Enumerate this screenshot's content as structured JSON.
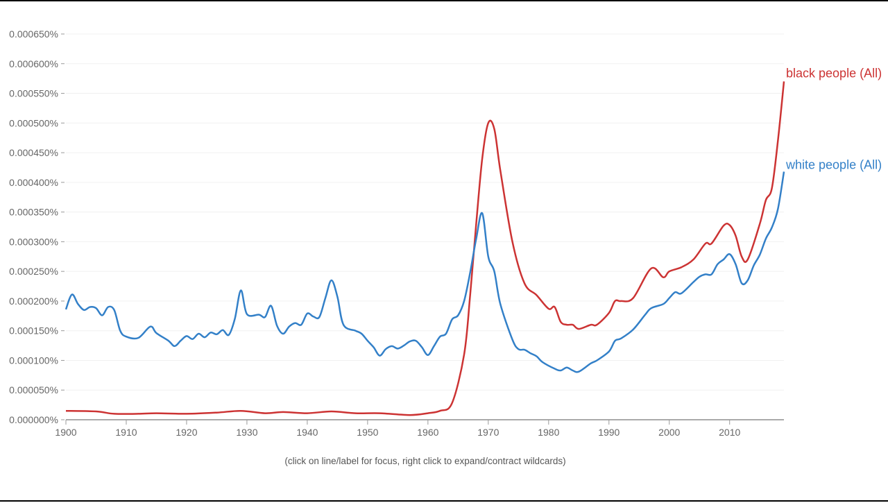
{
  "chart_data": {
    "type": "line",
    "xlim": [
      1900,
      2019
    ],
    "ylim": [
      0,
      0.00065
    ],
    "x_ticks": [
      1900,
      1910,
      1920,
      1930,
      1940,
      1950,
      1960,
      1970,
      1980,
      1990,
      2000,
      2010
    ],
    "y_ticks": [
      {
        "value": 0.0,
        "label": "0.000000%"
      },
      {
        "value": 5e-05,
        "label": "0.000050%"
      },
      {
        "value": 0.0001,
        "label": "0.000100%"
      },
      {
        "value": 0.00015,
        "label": "0.000150%"
      },
      {
        "value": 0.0002,
        "label": "0.000200%"
      },
      {
        "value": 0.00025,
        "label": "0.000250%"
      },
      {
        "value": 0.0003,
        "label": "0.000300%"
      },
      {
        "value": 0.00035,
        "label": "0.000350%"
      },
      {
        "value": 0.0004,
        "label": "0.000400%"
      },
      {
        "value": 0.00045,
        "label": "0.000450%"
      },
      {
        "value": 0.0005,
        "label": "0.000500%"
      },
      {
        "value": 0.00055,
        "label": "0.000550%"
      },
      {
        "value": 0.0006,
        "label": "0.000600%"
      },
      {
        "value": 0.00065,
        "label": "0.000650%"
      }
    ],
    "grid": true,
    "series": [
      {
        "name": "black people (All)",
        "color": "#cc3333",
        "points": [
          [
            1900,
            1.5e-05
          ],
          [
            1905,
            1.4e-05
          ],
          [
            1908,
            1e-05
          ],
          [
            1912,
            1e-05
          ],
          [
            1915,
            1.1e-05
          ],
          [
            1920,
            1e-05
          ],
          [
            1925,
            1.2e-05
          ],
          [
            1929,
            1.5e-05
          ],
          [
            1933,
            1.1e-05
          ],
          [
            1936,
            1.3e-05
          ],
          [
            1940,
            1.1e-05
          ],
          [
            1944,
            1.4e-05
          ],
          [
            1948,
            1.1e-05
          ],
          [
            1952,
            1.1e-05
          ],
          [
            1957,
            8e-06
          ],
          [
            1960,
            1.1e-05
          ],
          [
            1962,
            1.5e-05
          ],
          [
            1964,
            2.8e-05
          ],
          [
            1966,
            0.00011
          ],
          [
            1967,
            0.00021
          ],
          [
            1968,
            0.00033
          ],
          [
            1969,
            0.00044
          ],
          [
            1970,
            0.0005
          ],
          [
            1971,
            0.00049
          ],
          [
            1972,
            0.00042
          ],
          [
            1974,
            0.0003
          ],
          [
            1976,
            0.00023
          ],
          [
            1978,
            0.00021
          ],
          [
            1980,
            0.000187
          ],
          [
            1981,
            0.00019
          ],
          [
            1982,
            0.000165
          ],
          [
            1983,
            0.00016
          ],
          [
            1984,
            0.00016
          ],
          [
            1985,
            0.000153
          ],
          [
            1987,
            0.00016
          ],
          [
            1988,
            0.00016
          ],
          [
            1990,
            0.00018
          ],
          [
            1991,
            0.0002
          ],
          [
            1992,
            0.0002
          ],
          [
            1994,
            0.000205
          ],
          [
            1997,
            0.000255
          ],
          [
            1999,
            0.00024
          ],
          [
            2000,
            0.00025
          ],
          [
            2002,
            0.000257
          ],
          [
            2004,
            0.00027
          ],
          [
            2006,
            0.000297
          ],
          [
            2007,
            0.000297
          ],
          [
            2009,
            0.000327
          ],
          [
            2010,
            0.000328
          ],
          [
            2011,
            0.00031
          ],
          [
            2012,
            0.000275
          ],
          [
            2013,
            0.00027
          ],
          [
            2015,
            0.00033
          ],
          [
            2016,
            0.00037
          ],
          [
            2017,
            0.00039
          ],
          [
            2018,
            0.00047
          ],
          [
            2019,
            0.00057
          ]
        ]
      },
      {
        "name": "white people (All)",
        "color": "#3380c8",
        "points": [
          [
            1900,
            0.000186
          ],
          [
            1901,
            0.000211
          ],
          [
            1902,
            0.000195
          ],
          [
            1903,
            0.000185
          ],
          [
            1904,
            0.00019
          ],
          [
            1905,
            0.000188
          ],
          [
            1906,
            0.000176
          ],
          [
            1907,
            0.00019
          ],
          [
            1908,
            0.000185
          ],
          [
            1909,
            0.00015
          ],
          [
            1910,
            0.00014
          ],
          [
            1912,
            0.000138
          ],
          [
            1914,
            0.000157
          ],
          [
            1915,
            0.000146
          ],
          [
            1917,
            0.000133
          ],
          [
            1918,
            0.000124
          ],
          [
            1919,
            0.000133
          ],
          [
            1920,
            0.000141
          ],
          [
            1921,
            0.000136
          ],
          [
            1922,
            0.000145
          ],
          [
            1923,
            0.000139
          ],
          [
            1924,
            0.000147
          ],
          [
            1925,
            0.000144
          ],
          [
            1926,
            0.000151
          ],
          [
            1927,
            0.000143
          ],
          [
            1928,
            0.00017
          ],
          [
            1929,
            0.000218
          ],
          [
            1930,
            0.000178
          ],
          [
            1932,
            0.000177
          ],
          [
            1933,
            0.000173
          ],
          [
            1934,
            0.000192
          ],
          [
            1935,
            0.000158
          ],
          [
            1936,
            0.000145
          ],
          [
            1937,
            0.000157
          ],
          [
            1938,
            0.000163
          ],
          [
            1939,
            0.00016
          ],
          [
            1940,
            0.000179
          ],
          [
            1941,
            0.000174
          ],
          [
            1942,
            0.000173
          ],
          [
            1943,
            0.000205
          ],
          [
            1944,
            0.000235
          ],
          [
            1945,
            0.000207
          ],
          [
            1946,
            0.00016
          ],
          [
            1948,
            0.00015
          ],
          [
            1949,
            0.000145
          ],
          [
            1950,
            0.000133
          ],
          [
            1951,
            0.000122
          ],
          [
            1952,
            0.000108
          ],
          [
            1953,
            0.000119
          ],
          [
            1954,
            0.000124
          ],
          [
            1955,
            0.00012
          ],
          [
            1956,
            0.000125
          ],
          [
            1957,
            0.000132
          ],
          [
            1958,
            0.000133
          ],
          [
            1959,
            0.000122
          ],
          [
            1960,
            0.000109
          ],
          [
            1961,
            0.000124
          ],
          [
            1962,
            0.00014
          ],
          [
            1963,
            0.000145
          ],
          [
            1964,
            0.000169
          ],
          [
            1965,
            0.000176
          ],
          [
            1966,
            0.0002
          ],
          [
            1967,
            0.000248
          ],
          [
            1968,
            0.000305
          ],
          [
            1969,
            0.000348
          ],
          [
            1970,
            0.000275
          ],
          [
            1971,
            0.00025
          ],
          [
            1972,
            0.000195
          ],
          [
            1974,
            0.000135
          ],
          [
            1975,
            0.000119
          ],
          [
            1976,
            0.000118
          ],
          [
            1977,
            0.000112
          ],
          [
            1978,
            0.000107
          ],
          [
            1979,
            9.7e-05
          ],
          [
            1981,
            8.6e-05
          ],
          [
            1982,
            8.3e-05
          ],
          [
            1983,
            8.8e-05
          ],
          [
            1984,
            8.3e-05
          ],
          [
            1985,
            8.1e-05
          ],
          [
            1987,
            9.5e-05
          ],
          [
            1988,
            0.0001
          ],
          [
            1990,
            0.000115
          ],
          [
            1991,
            0.000133
          ],
          [
            1992,
            0.000137
          ],
          [
            1994,
            0.000152
          ],
          [
            1996,
            0.000177
          ],
          [
            1997,
            0.000188
          ],
          [
            1999,
            0.000195
          ],
          [
            2000,
            0.000205
          ],
          [
            2001,
            0.000215
          ],
          [
            2002,
            0.000213
          ],
          [
            2004,
            0.000232
          ],
          [
            2005,
            0.000241
          ],
          [
            2006,
            0.000245
          ],
          [
            2007,
            0.000245
          ],
          [
            2008,
            0.000262
          ],
          [
            2009,
            0.00027
          ],
          [
            2010,
            0.000279
          ],
          [
            2011,
            0.000262
          ],
          [
            2012,
            0.00023
          ],
          [
            2013,
            0.000235
          ],
          [
            2014,
            0.00026
          ],
          [
            2015,
            0.000278
          ],
          [
            2016,
            0.000305
          ],
          [
            2017,
            0.000324
          ],
          [
            2018,
            0.000355
          ],
          [
            2019,
            0.000418
          ]
        ]
      }
    ]
  },
  "caption": "(click on line/label for focus, right click to expand/contract wildcards)"
}
